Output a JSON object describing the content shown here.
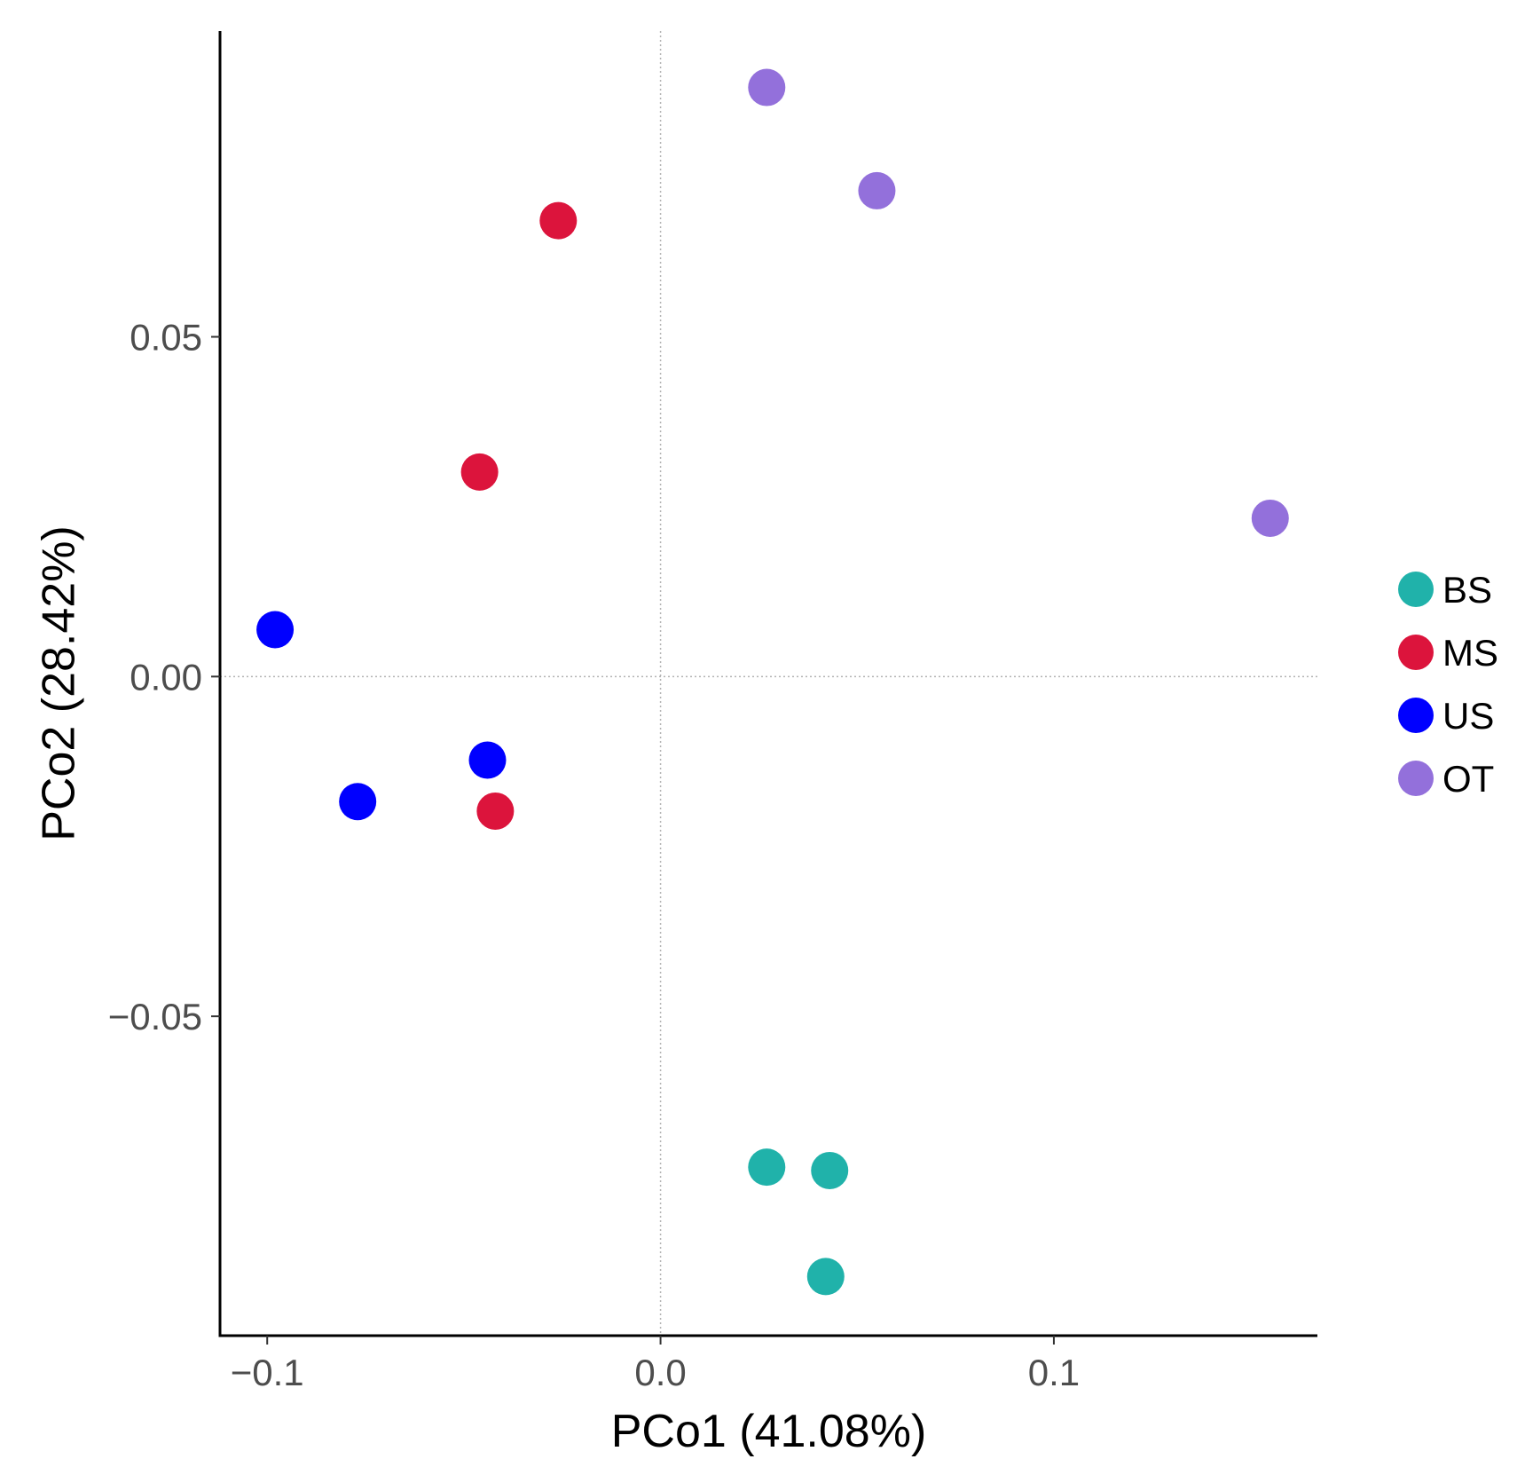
{
  "chart_data": {
    "type": "scatter",
    "title": "",
    "xlabel": "PCo1 (41.08%)",
    "ylabel": "PCo2 (28.42%)",
    "xlim": [
      -0.112,
      0.167
    ],
    "ylim": [
      -0.097,
      0.095
    ],
    "x_ticks": [
      {
        "value": -0.1,
        "label": "−0.1"
      },
      {
        "value": 0.0,
        "label": "0.0"
      },
      {
        "value": 0.1,
        "label": "0.1"
      }
    ],
    "y_ticks": [
      {
        "value": 0.05,
        "label": "0.05"
      },
      {
        "value": 0.0,
        "label": "0.00"
      },
      {
        "value": -0.05,
        "label": "−0.05"
      }
    ],
    "reference_lines": {
      "x": 0,
      "y": 0
    },
    "legend_position": "right",
    "series": [
      {
        "name": "BS",
        "color": "#20b2aa",
        "points": [
          [
            0.027,
            -0.0722
          ],
          [
            0.043,
            -0.0727
          ],
          [
            0.042,
            -0.0883
          ]
        ]
      },
      {
        "name": "MS",
        "color": "#dc143c",
        "points": [
          [
            -0.026,
            0.0671
          ],
          [
            -0.046,
            0.0301
          ],
          [
            -0.042,
            -0.0198
          ]
        ]
      },
      {
        "name": "US",
        "color": "#0000ff",
        "points": [
          [
            -0.098,
            0.0069
          ],
          [
            -0.077,
            -0.0184
          ],
          [
            -0.044,
            -0.0123
          ]
        ]
      },
      {
        "name": "OT",
        "color": "#9370db",
        "points": [
          [
            0.027,
            0.0867
          ],
          [
            0.055,
            0.0715
          ],
          [
            0.155,
            0.0233
          ]
        ]
      }
    ]
  }
}
